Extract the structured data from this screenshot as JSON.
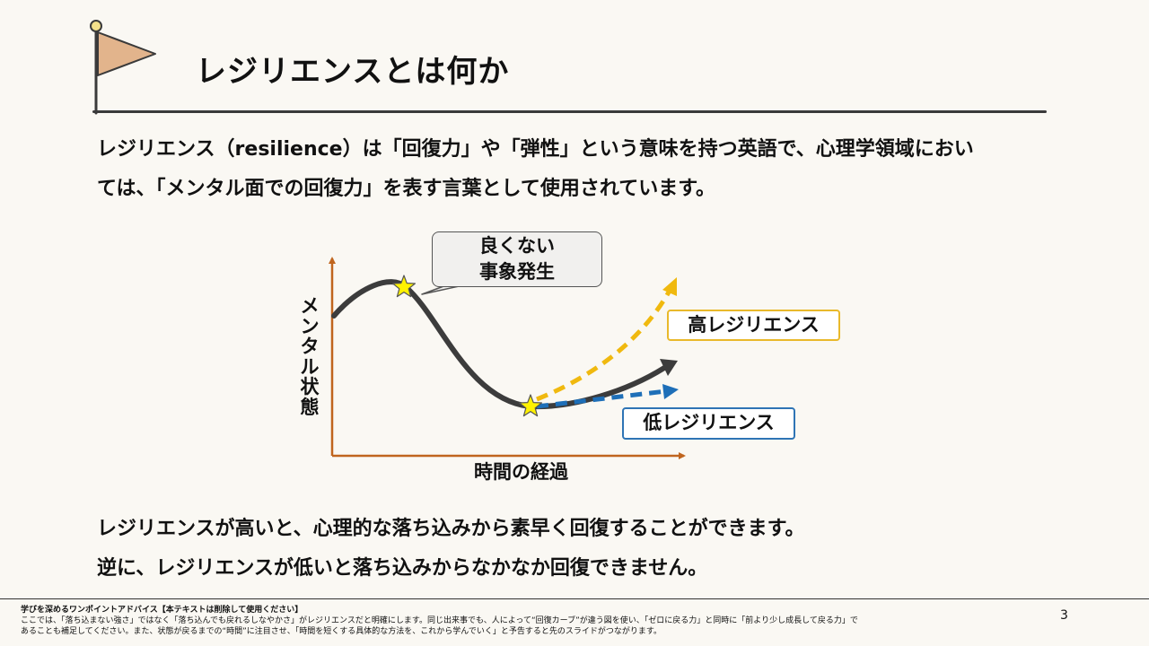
{
  "slide": {
    "title": "レジリエンスとは何か",
    "intro_line1": "レジリエンス（resilience）は「回復力」や「弾性」という意味を持つ英語で、心理学領域におい",
    "intro_line2": "ては、「メンタル面での回復力」を表す言葉として使用されています。",
    "summary_line1": "レジリエンスが高いと、心理的な落ち込みから素早く回復することができます。",
    "summary_line2": "逆に、レジリエンスが低いと落ち込みからなかなか回復できません。",
    "page_number": "3"
  },
  "diagram": {
    "callout_line1": "良くない",
    "callout_line2": "事象発生",
    "y_axis_chars": [
      "メ",
      "ン",
      "タ",
      "ル",
      "状",
      "態"
    ],
    "x_axis_label": "時間の経過",
    "high_label": "高レジリエンス",
    "low_label": "低レジリエンス",
    "colors": {
      "axis": "#c0651e",
      "main_curve": "#3c3c3c",
      "high": "#f0b90f",
      "low": "#1e6fb8",
      "star": "#fff200",
      "flag": "#e2b48c"
    }
  },
  "footer": {
    "heading": "学びを深めるワンポイントアドバイス【本テキストは削除して使用ください】",
    "line1": "ここでは、「落ち込まない強さ」ではなく「落ち込んでも戻れるしなやかさ」がレジリエンスだと明確にします。同じ出来事でも、人によって“回復カーブ”が違う図を使い、「ゼロに戻る力」と同時に「前より少し成長して戻る力」で",
    "line2": "あることも補足してください。また、状態が戻るまでの“時間”に注目させ、「時間を短くする具体的な方法を、これから学んでいく」と予告すると先のスライドがつながります。"
  }
}
